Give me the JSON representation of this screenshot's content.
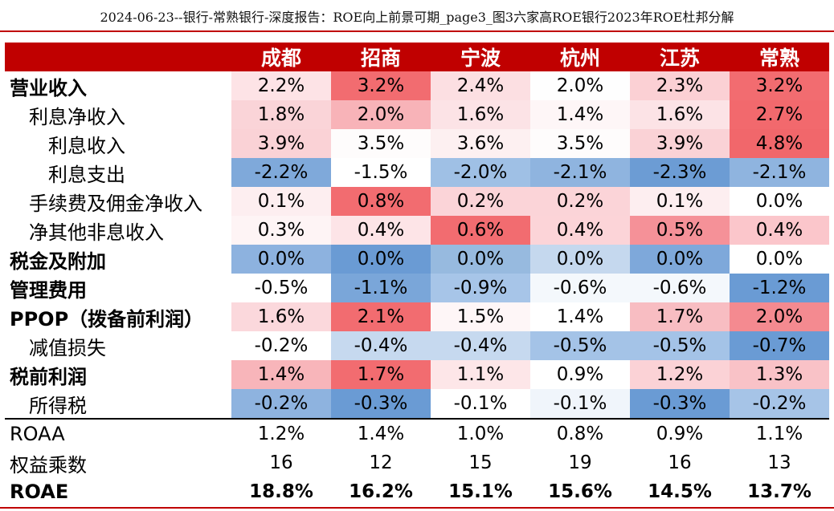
{
  "doc_title": "2024-06-23--银行-常熟银行-深度报告：ROE向上前景可期_page3_图3六家高ROE银行2023年ROE杜邦分解",
  "columns": [
    "成都",
    "招商",
    "宁波",
    "杭州",
    "江苏",
    "常熟"
  ],
  "rows": [
    {
      "label": "营业收入",
      "bold": true,
      "indent": 0,
      "values": [
        "2.2%",
        "3.2%",
        "2.4%",
        "2.0%",
        "2.3%",
        "3.2%"
      ],
      "colors": [
        "#fde3e6",
        "#f26c70",
        "#fcdfe2",
        "#fefefe",
        "#fbd0d4",
        "#f26c70"
      ]
    },
    {
      "label": "利息净收入",
      "bold": false,
      "indent": 1,
      "values": [
        "1.8%",
        "2.0%",
        "1.6%",
        "1.4%",
        "1.6%",
        "2.7%"
      ],
      "colors": [
        "#fad4d8",
        "#f8b3b8",
        "#fce3e6",
        "#fef6f7",
        "#fce3e6",
        "#f2696d"
      ]
    },
    {
      "label": "利息收入",
      "bold": false,
      "indent": 2,
      "values": [
        "3.9%",
        "3.5%",
        "3.6%",
        "3.5%",
        "3.9%",
        "4.8%"
      ],
      "colors": [
        "#fad2d6",
        "#fefcfc",
        "#fdf0f1",
        "#fefcfc",
        "#fad2d6",
        "#f1676b"
      ]
    },
    {
      "label": "利息支出",
      "bold": false,
      "indent": 2,
      "values": [
        "-2.2%",
        "-1.5%",
        "-2.0%",
        "-2.1%",
        "-2.3%",
        "-2.1%"
      ],
      "colors": [
        "#7fa9da",
        "#ffffff",
        "#9fc0e5",
        "#8fb4df",
        "#6c9cd4",
        "#8fb4df"
      ]
    },
    {
      "label": "手续费及佣金净收入",
      "bold": false,
      "indent": 1,
      "values": [
        "0.1%",
        "0.8%",
        "0.2%",
        "0.2%",
        "0.1%",
        "0.0%"
      ],
      "colors": [
        "#fdeef0",
        "#f26c70",
        "#fbd4d8",
        "#fbd4d8",
        "#fdeef0",
        "#ffffff"
      ]
    },
    {
      "label": "净其他非息收入",
      "bold": false,
      "indent": 1,
      "values": [
        "0.3%",
        "0.4%",
        "0.6%",
        "0.4%",
        "0.5%",
        "0.4%"
      ],
      "colors": [
        "#fef4f5",
        "#fde4e7",
        "#f26c70",
        "#fcd4d8",
        "#f59198",
        "#fbc6cb"
      ]
    },
    {
      "label": "税金及附加",
      "bold": true,
      "indent": 0,
      "values": [
        "0.0%",
        "0.0%",
        "0.0%",
        "0.0%",
        "0.0%",
        "0.0%"
      ],
      "colors": [
        "#8db2df",
        "#6a9bd4",
        "#97badf",
        "#c5d8ee",
        "#7ea8da",
        "#ffffff"
      ]
    },
    {
      "label": "管理费用",
      "bold": true,
      "indent": 0,
      "values": [
        "-0.5%",
        "-1.1%",
        "-0.9%",
        "-0.6%",
        "-0.6%",
        "-1.2%"
      ],
      "colors": [
        "#ffffff",
        "#7aa6d9",
        "#a7c5e8",
        "#f4f8fc",
        "#f4f8fc",
        "#6a9bd4"
      ]
    },
    {
      "label": "PPOP（拨备前利润）",
      "bold": true,
      "indent": 0,
      "values": [
        "1.6%",
        "2.1%",
        "1.5%",
        "1.4%",
        "1.7%",
        "2.0%"
      ],
      "colors": [
        "#fbd8dc",
        "#f26c70",
        "#fef6f7",
        "#ffffff",
        "#f8bdc2",
        "#f48a90"
      ]
    },
    {
      "label": "减值损失",
      "bold": false,
      "indent": 1,
      "values": [
        "-0.2%",
        "-0.4%",
        "-0.4%",
        "-0.5%",
        "-0.5%",
        "-0.7%"
      ],
      "colors": [
        "#ffffff",
        "#c6d9ef",
        "#c6d9ef",
        "#a4c3e7",
        "#a4c3e7",
        "#6a9bd4"
      ]
    },
    {
      "label": "税前利润",
      "bold": true,
      "indent": 0,
      "values": [
        "1.4%",
        "1.7%",
        "1.1%",
        "0.9%",
        "1.2%",
        "1.3%"
      ],
      "colors": [
        "#f8b5ba",
        "#f26c70",
        "#fde6e8",
        "#ffffff",
        "#fbd2d6",
        "#f9c2c7"
      ]
    },
    {
      "label": "所得税",
      "bold": false,
      "indent": 1,
      "values": [
        "-0.2%",
        "-0.3%",
        "-0.1%",
        "-0.1%",
        "-0.3%",
        "-0.2%"
      ],
      "colors": [
        "#8eb3df",
        "#6a9bd4",
        "#ffffff",
        "#f0f5fb",
        "#6a9bd4",
        "#a6c4e7"
      ]
    }
  ],
  "summary_rows": [
    {
      "label": "ROAA",
      "bold": false,
      "values": [
        "1.2%",
        "1.4%",
        "1.0%",
        "0.8%",
        "0.9%",
        "1.1%"
      ]
    },
    {
      "label": "权益乘数",
      "bold": false,
      "values": [
        "16",
        "12",
        "15",
        "19",
        "16",
        "13"
      ]
    },
    {
      "label": "ROAE",
      "bold": true,
      "values": [
        "18.8%",
        "16.2%",
        "15.1%",
        "15.6%",
        "14.5%",
        "13.7%"
      ]
    }
  ]
}
